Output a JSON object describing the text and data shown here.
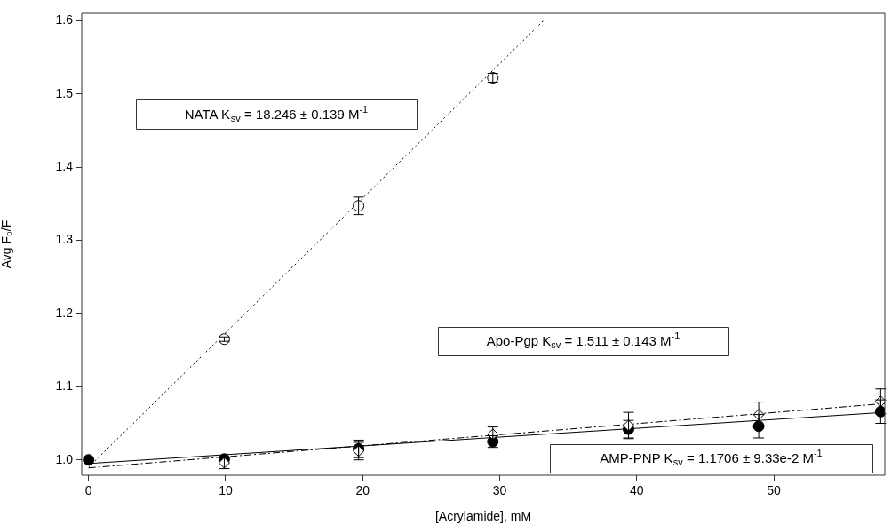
{
  "chart_data": {
    "type": "scatter",
    "xlabel": "[Acrylamide], mM",
    "ylabel": "Avg F₀/F",
    "xlim": [
      -0.5,
      58.1
    ],
    "xticks": [
      0,
      10,
      20,
      30,
      40,
      50
    ],
    "ylim": [
      0.979,
      1.61
    ],
    "yticks": [
      {
        "value": 1,
        "label": "1.0"
      },
      {
        "value": 1.1,
        "label": "1.1"
      },
      {
        "value": 1.2,
        "label": "1.2"
      },
      {
        "value": 1.3,
        "label": "1.3"
      },
      {
        "value": 1.4,
        "label": "1.4"
      },
      {
        "value": 1.5,
        "label": "1.5"
      },
      {
        "value": 1.6,
        "label": "1.6"
      }
    ],
    "grid": false,
    "legend": false,
    "series": [
      {
        "color": "#000000",
        "marker": "circle",
        "x": [
          9.9,
          19.7,
          29.5
        ],
        "values": [
          1.165,
          1.347,
          1.522
        ],
        "errors": [
          0.003,
          0.012,
          0.006
        ]
      },
      {
        "color": "#000000",
        "marker": "diamond",
        "x": [
          9.9,
          19.7,
          29.5,
          39.4,
          48.9,
          57.8
        ],
        "values": [
          0.996,
          1.012,
          1.035,
          1.047,
          1.062,
          1.08
        ],
        "errors": [
          0.008,
          0.012,
          0.01,
          0.018,
          0.017,
          0.017
        ]
      },
      {
        "color": "#000000",
        "marker": "circle",
        "x": [
          0,
          9.9,
          19.7,
          29.5,
          39.4,
          48.9,
          57.8
        ],
        "values": [
          1.0,
          1.001,
          1.015,
          1.025,
          1.042,
          1.046,
          1.066
        ],
        "errors": [
          null,
          null,
          0.012,
          0.008,
          0.012,
          0.016,
          0.016
        ]
      },
      {
        "type": "line",
        "color": "#000000",
        "marker": "none",
        "line_style": "dotted",
        "x": [
          0,
          33.2
        ],
        "values": [
          0.99,
          1.6
        ]
      },
      {
        "type": "line",
        "color": "#000000",
        "marker": "none",
        "line_style": "dashed",
        "x": [
          0,
          58.1
        ],
        "values": [
          0.989,
          1.077
        ]
      },
      {
        "type": "line",
        "color": "#000000",
        "marker": "none",
        "line_style": "solid",
        "x": [
          0,
          58.1
        ],
        "values": [
          0.995,
          1.065
        ]
      }
    ],
    "annotations": [
      "NATA K$_{sv}$ = 18.246 ± 0.139 M$^{-1}$",
      "Apo-Pgp K$_{sv}$ = 1.511 ± 0.143 M$^{-1}$",
      "AMP-PNP K$_{sv}$ = 1.1706 ± 9.33e-2 M$^{-1}$"
    ]
  }
}
